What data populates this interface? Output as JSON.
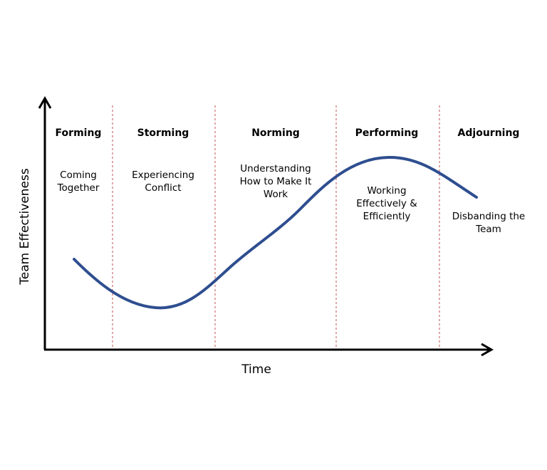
{
  "diagram": {
    "y_axis_label": "Team Effectiveness",
    "x_axis_label": "Time",
    "stages": [
      {
        "name": "Forming",
        "description": [
          "Coming",
          "Together"
        ]
      },
      {
        "name": "Storming",
        "description": [
          "Experiencing",
          "Conflict"
        ]
      },
      {
        "name": "Norming",
        "description": [
          "Understanding",
          "How to Make It",
          "Work"
        ]
      },
      {
        "name": "Performing",
        "description": [
          "Working",
          "Effectively &",
          "Efficiently"
        ]
      },
      {
        "name": "Adjourning",
        "description": [
          "Disbanding the",
          "Team"
        ]
      }
    ]
  }
}
